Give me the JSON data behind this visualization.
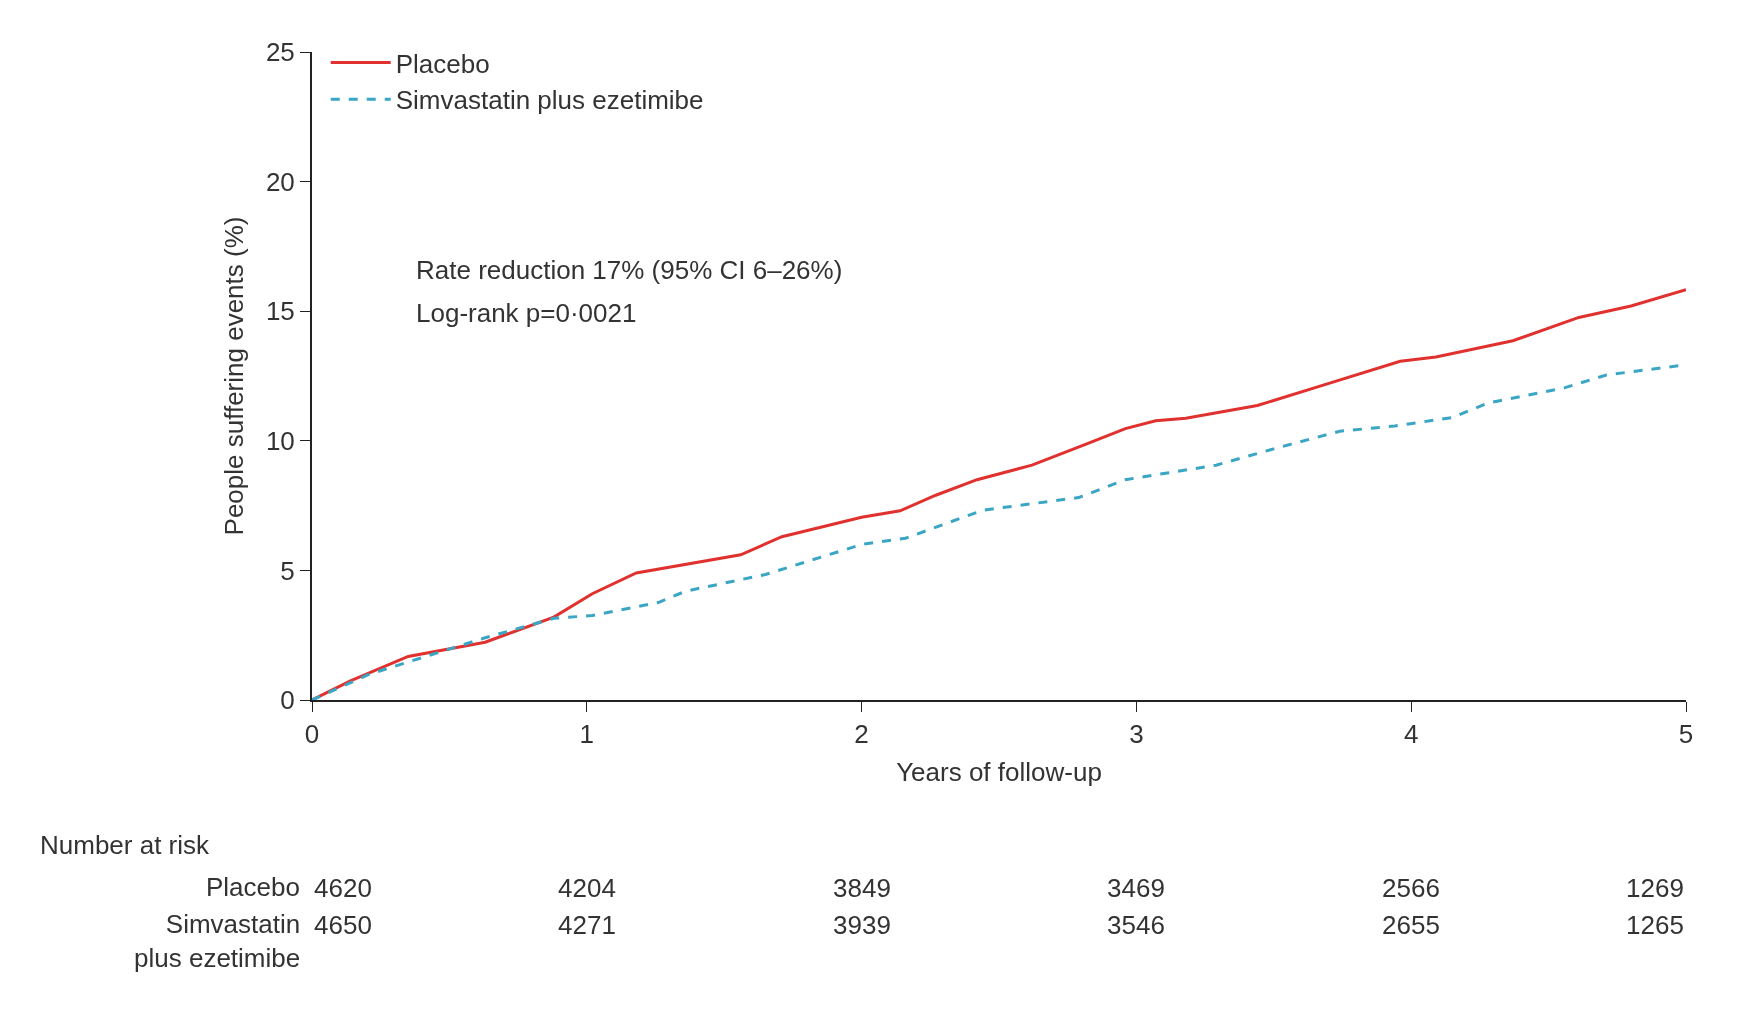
{
  "chart_data": {
    "type": "line",
    "xlabel": "Years of follow-up",
    "ylabel": "People suffering events (%)",
    "xlim": [
      0,
      5
    ],
    "xticks": [
      0,
      1,
      2,
      3,
      4,
      5
    ],
    "ylim": [
      0,
      25
    ],
    "yticks": [
      0,
      5,
      10,
      15,
      20,
      25
    ],
    "legend": "top left",
    "series": [
      {
        "name": "Placebo",
        "color": "#e0312f",
        "line_style": "solid",
        "x": [
          0,
          0.14,
          0.35,
          0.63,
          0.88,
          1.02,
          1.18,
          1.56,
          1.71,
          2.0,
          2.14,
          2.27,
          2.42,
          2.62,
          2.81,
          2.96,
          3.07,
          3.18,
          3.44,
          3.68,
          3.96,
          4.09,
          4.37,
          4.61,
          4.8,
          5.0
        ],
        "values": [
          0,
          0.74,
          1.68,
          2.23,
          3.2,
          4.1,
          4.9,
          5.6,
          6.3,
          7.05,
          7.3,
          7.9,
          8.5,
          9.06,
          9.84,
          10.47,
          10.77,
          10.87,
          11.36,
          12.15,
          13.07,
          13.23,
          13.86,
          14.76,
          15.2,
          15.83
        ]
      },
      {
        "name": "Simvastatin plus ezetimibe",
        "color": "#3aa6c4",
        "line_style": "dashed",
        "x": [
          0,
          0.21,
          0.63,
          0.88,
          1.02,
          1.26,
          1.36,
          1.65,
          2.0,
          2.16,
          2.44,
          2.79,
          2.96,
          3.29,
          3.5,
          3.74,
          3.94,
          4.15,
          4.28,
          4.56,
          4.71,
          5.0
        ],
        "values": [
          0,
          1.0,
          2.4,
          3.15,
          3.26,
          3.76,
          4.2,
          4.84,
          6.0,
          6.24,
          7.32,
          7.81,
          8.5,
          9.06,
          9.69,
          10.37,
          10.57,
          10.9,
          11.46,
          12.05,
          12.54,
          12.93
        ]
      }
    ],
    "annotations": [
      "Rate reduction 17% (95% CI 6–26%)",
      "Log-rank p=0·0021",
      "Number at risk",
      "Placebo",
      "4620",
      "4204",
      "3849",
      "3469",
      "2566",
      "1269",
      "Simvastatin\nplus ezetimibe",
      "4650",
      "4271",
      "3939",
      "3546",
      "2655",
      "1265"
    ]
  }
}
